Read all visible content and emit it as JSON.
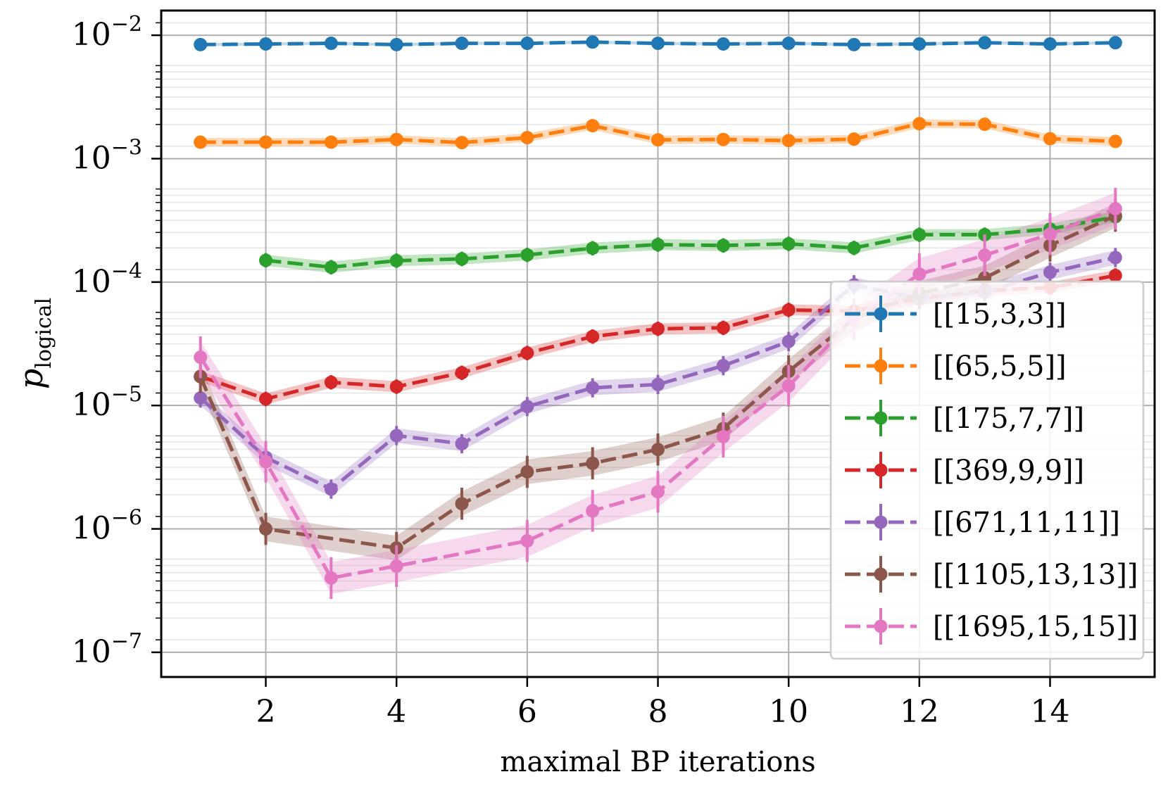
{
  "chart_data": {
    "type": "line",
    "title": "",
    "xlabel": "maximal BP iterations",
    "ylabel_main": "p",
    "ylabel_sub": "logical",
    "yscale": "log",
    "xlim": [
      0.4,
      15.6
    ],
    "ylim_exp": [
      -7.2,
      -1.8
    ],
    "x_ticks": [
      2,
      4,
      6,
      8,
      10,
      12,
      14
    ],
    "x_tick_labels": [
      "2",
      "4",
      "6",
      "8",
      "10",
      "12",
      "14"
    ],
    "y_ticks_exp": [
      -7,
      -6,
      -5,
      -4,
      -3,
      -2
    ],
    "y_tick_base": "10",
    "y_tick_exps": [
      "−7",
      "−6",
      "−5",
      "−4",
      "−3",
      "−2"
    ],
    "grid": true,
    "legend_position": "lower right",
    "series": [
      {
        "name": "[[15,3,3]]",
        "color": "#1f77b4",
        "x": [
          1,
          2,
          3,
          4,
          5,
          6,
          7,
          8,
          9,
          10,
          11,
          12,
          13,
          14,
          15
        ],
        "y": [
          0.0084,
          0.0085,
          0.0086,
          0.0084,
          0.0086,
          0.0086,
          0.0088,
          0.0086,
          0.0085,
          0.0086,
          0.0084,
          0.0085,
          0.0087,
          0.0085,
          0.0087
        ]
      },
      {
        "name": "[[65,5,5]]",
        "color": "#ff7f0e",
        "x": [
          1,
          2,
          3,
          4,
          5,
          6,
          7,
          8,
          9,
          10,
          11,
          12,
          13,
          14,
          15
        ],
        "y": [
          0.00136,
          0.00136,
          0.00136,
          0.00143,
          0.00135,
          0.00148,
          0.00185,
          0.00142,
          0.00143,
          0.0014,
          0.00144,
          0.00192,
          0.0019,
          0.00145,
          0.00138
        ]
      },
      {
        "name": "[[175,7,7]]",
        "color": "#2ca02c",
        "x": [
          2,
          3,
          4,
          5,
          6,
          7,
          8,
          9,
          10,
          11,
          12,
          13,
          14,
          15
        ],
        "y": [
          0.00015,
          0.000132,
          0.000149,
          0.000154,
          0.000166,
          0.000188,
          0.000201,
          0.000198,
          0.000204,
          0.000189,
          0.000242,
          0.000242,
          0.000269,
          0.000338
        ]
      },
      {
        "name": "[[369,9,9]]",
        "color": "#d62728",
        "x": [
          1,
          2,
          3,
          4,
          5,
          6,
          7,
          8,
          9,
          10,
          11,
          12,
          13,
          14,
          15
        ],
        "y": [
          1.72e-05,
          1.13e-05,
          1.54e-05,
          1.42e-05,
          1.84e-05,
          2.66e-05,
          3.62e-05,
          4.18e-05,
          4.26e-05,
          5.95e-05,
          5.81e-05,
          7.35e-05,
          8.53e-05,
          9.02e-05,
          0.000113
        ]
      },
      {
        "name": "[[671,11,11]]",
        "color": "#9467bd",
        "x": [
          1,
          2,
          3,
          4,
          5,
          6,
          7,
          8,
          9,
          10,
          11,
          12,
          13,
          14,
          15
        ],
        "y": [
          1.15e-05,
          3.8e-06,
          2.1e-06,
          5.7e-06,
          4.9e-06,
          9.8e-06,
          1.39e-05,
          1.48e-05,
          2.1e-05,
          3.3e-05,
          9.5e-05,
          7.4e-05,
          8.3e-05,
          0.00012,
          0.000158
        ]
      },
      {
        "name": "[[1105,13,13]]",
        "color": "#8c564b",
        "x": [
          1,
          2,
          3,
          4,
          5,
          6,
          7,
          8,
          9,
          10,
          11,
          12,
          13,
          14,
          15
        ],
        "y": [
          1.71e-05,
          1e-06,
          null,
          7e-07,
          1.6e-06,
          2.9e-06,
          3.4e-06,
          4.4e-06,
          6.5e-06,
          1.89e-05,
          5.05e-05,
          8.1e-05,
          0.000108,
          0.000198,
          0.000345
        ]
      },
      {
        "name": "[[1695,15,15]]",
        "color": "#e377c2",
        "x": [
          1,
          2,
          3,
          4,
          5,
          6,
          7,
          8,
          9,
          10,
          11,
          12,
          13,
          14,
          15
        ],
        "y": [
          2.46e-05,
          3.5e-06,
          4e-07,
          5e-07,
          null,
          8e-07,
          1.4e-06,
          2e-06,
          5.6e-06,
          1.44e-05,
          5.01e-05,
          0.000116,
          0.000165,
          0.000245,
          0.000393
        ]
      }
    ]
  }
}
